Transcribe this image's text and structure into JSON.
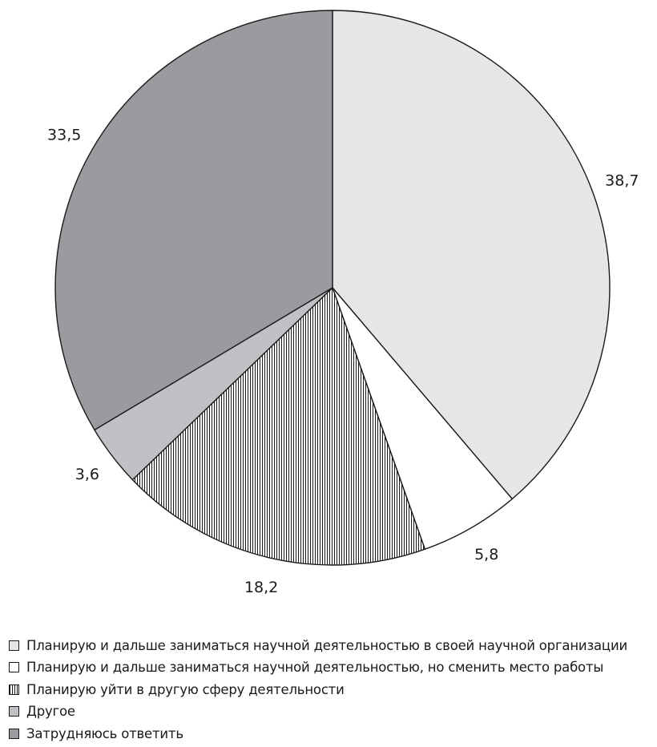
{
  "chart_data": {
    "type": "pie",
    "title": "",
    "slices": [
      {
        "label": "Планирую и дальше заниматься научной деятельностью в своей научной организации",
        "value": 38.7,
        "display": "38,7",
        "color": "#e6e6e6",
        "pattern": "solid"
      },
      {
        "label": "Планирую и дальше заниматься научной деятельностью, но сменить место работы",
        "value": 5.8,
        "display": "5,8",
        "color": "#ffffff",
        "pattern": "solid"
      },
      {
        "label": "Планирую уйти в другую сферу деятельности",
        "value": 18.2,
        "display": "18,2",
        "color": "#ffffff",
        "pattern": "vertical-hatch"
      },
      {
        "label": "Другое",
        "value": 3.6,
        "display": "3,6",
        "color": "#c0c1c4",
        "pattern": "solid"
      },
      {
        "label": "Затрудняюсь ответить",
        "value": 33.5,
        "display": "33,5",
        "color": "#9a9b9e",
        "pattern": "solid"
      }
    ],
    "start_angle_deg": 0,
    "direction": "clockwise",
    "legend_position": "bottom-left"
  }
}
